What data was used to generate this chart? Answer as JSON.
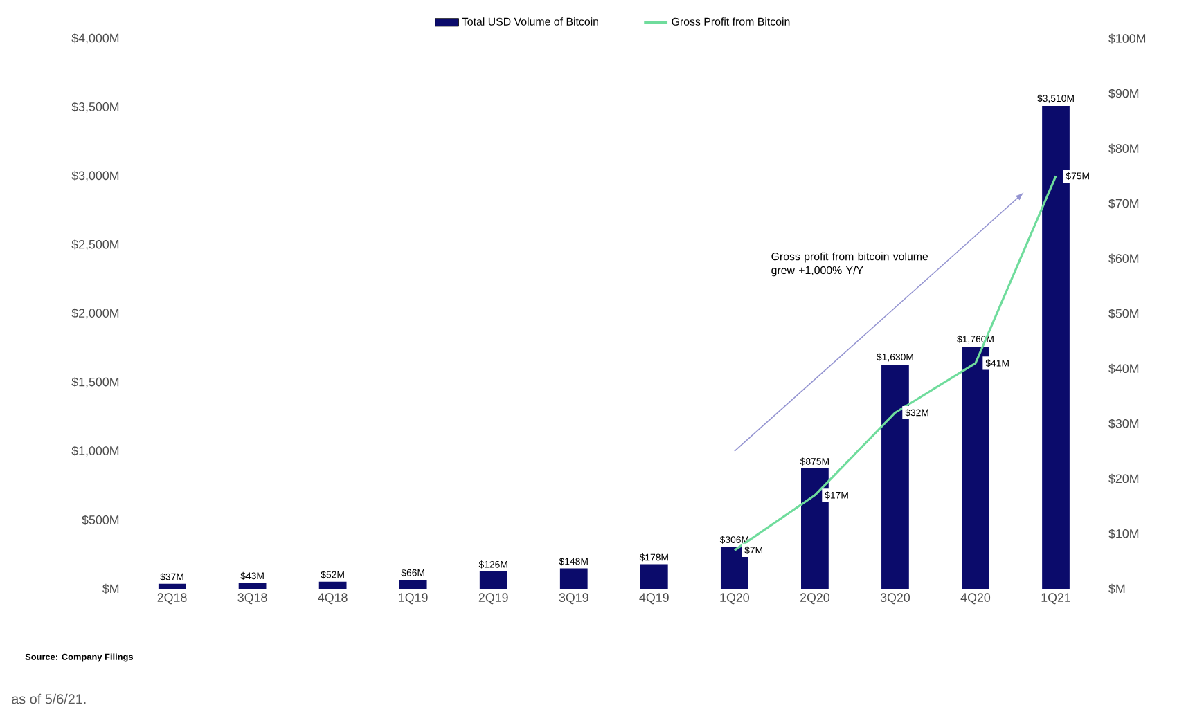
{
  "chart_data": {
    "type": "bar",
    "categories": [
      "2Q18",
      "3Q18",
      "4Q18",
      "1Q19",
      "2Q19",
      "3Q19",
      "4Q19",
      "1Q20",
      "2Q20",
      "3Q20",
      "4Q20",
      "1Q21"
    ],
    "series": [
      {
        "name": "Total USD Volume of Bitcoin",
        "color": "#0b0b6b",
        "values": [
          37,
          43,
          52,
          66,
          126,
          148,
          178,
          306,
          875,
          1630,
          1760,
          3510
        ],
        "value_labels": [
          "$37M",
          "$43M",
          "$52M",
          "$66M",
          "$126M",
          "$148M",
          "$178M",
          "$306M",
          "$875M",
          "$1,630M",
          "$1,760M",
          "$3,510M"
        ]
      },
      {
        "name": "Gross Profit from Bitcoin",
        "type": "line",
        "axis": "y2",
        "color": "#6fdc9c",
        "values": [
          null,
          null,
          null,
          null,
          null,
          null,
          null,
          7,
          17,
          32,
          41,
          75
        ],
        "value_labels": [
          null,
          null,
          null,
          null,
          null,
          null,
          null,
          "$7M",
          "$17M",
          "$32M",
          "$41M",
          "$75M"
        ]
      }
    ],
    "ylim": [
      0,
      4000
    ],
    "yticks": [
      {
        "value": 0,
        "label": "$M"
      },
      {
        "value": 500,
        "label": "$500M"
      },
      {
        "value": 1000,
        "label": "$1,000M"
      },
      {
        "value": 1500,
        "label": "$1,500M"
      },
      {
        "value": 2000,
        "label": "$2,000M"
      },
      {
        "value": 2500,
        "label": "$2,500M"
      },
      {
        "value": 3000,
        "label": "$3,000M"
      },
      {
        "value": 3500,
        "label": "$3,500M"
      },
      {
        "value": 4000,
        "label": "$4,000M"
      }
    ],
    "y2lim": [
      0,
      100
    ],
    "y2ticks": [
      {
        "value": 0,
        "label": "$M"
      },
      {
        "value": 10,
        "label": "$10M"
      },
      {
        "value": 20,
        "label": "$20M"
      },
      {
        "value": 30,
        "label": "$30M"
      },
      {
        "value": 40,
        "label": "$40M"
      },
      {
        "value": 50,
        "label": "$50M"
      },
      {
        "value": 60,
        "label": "$60M"
      },
      {
        "value": 70,
        "label": "$70M"
      },
      {
        "value": 80,
        "label": "$80M"
      },
      {
        "value": 90,
        "label": "$90M"
      },
      {
        "value": 100,
        "label": "$100M"
      }
    ],
    "legend": "top",
    "grid": false,
    "marker": "none",
    "line_style": "solid",
    "annotations": [
      "Gross profit from bitcoin volume grew +1,000% Y/Y",
      "Source: Company Filings",
      "as of 5/6/21."
    ]
  }
}
